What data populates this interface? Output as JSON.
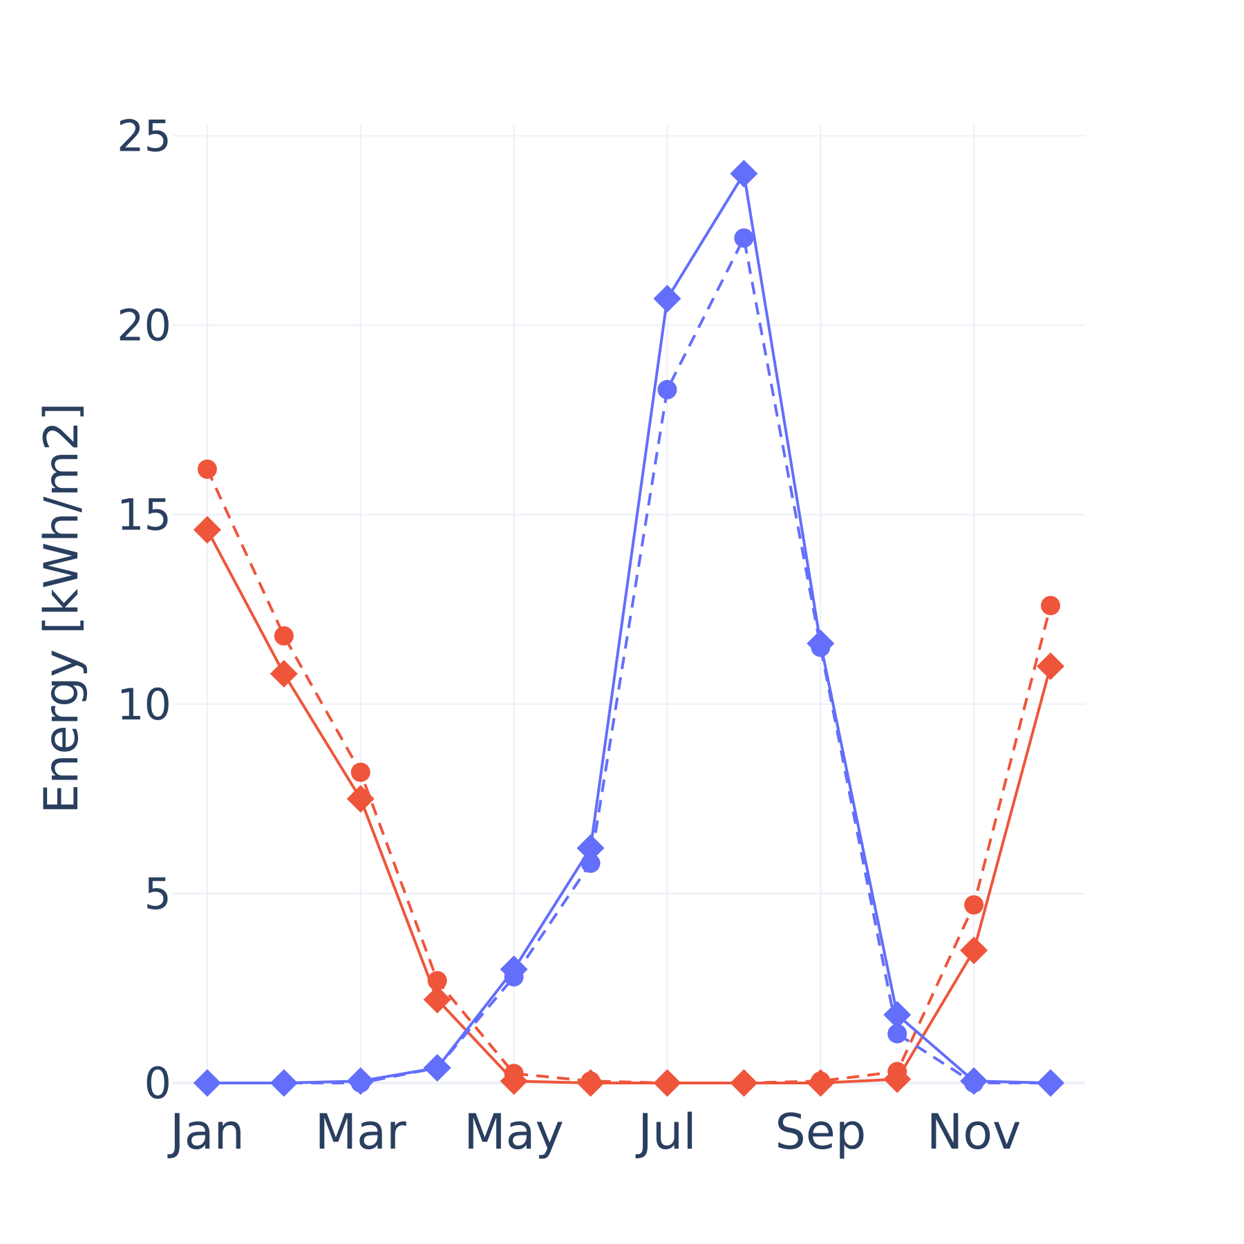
{
  "chart_data": {
    "type": "line",
    "ylabel": "Energy [kWh/m2]",
    "xlabel": "",
    "ylim": [
      0,
      25
    ],
    "yticks": [
      0,
      5,
      10,
      15,
      20,
      25
    ],
    "x": [
      1,
      2,
      3,
      4,
      5,
      6,
      7,
      8,
      9,
      10,
      11,
      12
    ],
    "xtick_values": [
      1,
      3,
      5,
      7,
      9,
      11
    ],
    "xtick_labels": [
      "Jan",
      "Mar",
      "May",
      "Jul",
      "Sep",
      "Nov"
    ],
    "grid": true,
    "legend": "none",
    "series": [
      {
        "color": "#EF553B",
        "dash": "solid",
        "marker": "diamond",
        "values": [
          14.6,
          10.8,
          7.5,
          2.2,
          0.05,
          0.0,
          0.0,
          0.0,
          0.0,
          0.1,
          3.5,
          11.0
        ]
      },
      {
        "color": "#EF553B",
        "dash": "dash",
        "marker": "circle",
        "values": [
          16.2,
          11.8,
          8.2,
          2.7,
          0.25,
          0.05,
          0.0,
          0.0,
          0.05,
          0.3,
          4.7,
          12.6
        ]
      },
      {
        "color": "#636EFA",
        "dash": "solid",
        "marker": "diamond",
        "values": [
          0.0,
          0.0,
          0.05,
          0.4,
          3.0,
          6.2,
          20.7,
          24.0,
          11.6,
          1.8,
          0.05,
          0.0
        ]
      },
      {
        "color": "#636EFA",
        "dash": "dash",
        "marker": "circle",
        "values": [
          0.0,
          0.0,
          0.0,
          0.4,
          2.8,
          5.8,
          18.3,
          22.3,
          11.5,
          1.3,
          0.0,
          0.0
        ]
      }
    ]
  }
}
